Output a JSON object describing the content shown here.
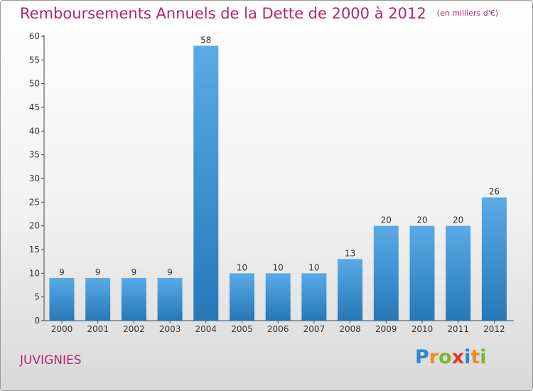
{
  "chart_data": {
    "type": "bar",
    "title": "Remboursements Annuels de la Dette de 2000 à 2012",
    "unit": "(en milliers d'€)",
    "categories": [
      "2000",
      "2001",
      "2002",
      "2003",
      "2004",
      "2005",
      "2006",
      "2007",
      "2008",
      "2009",
      "2010",
      "2011",
      "2012"
    ],
    "values": [
      9,
      9,
      9,
      9,
      58,
      10,
      10,
      10,
      13,
      20,
      20,
      20,
      26
    ],
    "ylim": [
      0,
      60
    ],
    "yticks": [
      0,
      5,
      10,
      15,
      20,
      25,
      30,
      35,
      40,
      45,
      50,
      55,
      60
    ],
    "xlabel": "",
    "ylabel": "",
    "grid": false,
    "legend": "none",
    "bar_color_top": "#5aaae6",
    "bar_color_bottom": "#2678b8",
    "title_color": "#b0286a"
  },
  "commune": "JUVIGNIES",
  "logo": {
    "text": "Proxiti",
    "letters": [
      {
        "ch": "P",
        "color": "#2a88cc"
      },
      {
        "ch": "r",
        "color": "#f08c1a"
      },
      {
        "ch": "o",
        "color": "#7ab828"
      },
      {
        "ch": "x",
        "color": "#e03a2a"
      },
      {
        "ch": "i",
        "color": "#2a88cc"
      },
      {
        "ch": "t",
        "color": "#f08c1a"
      },
      {
        "ch": "i",
        "color": "#7ab828"
      }
    ]
  }
}
